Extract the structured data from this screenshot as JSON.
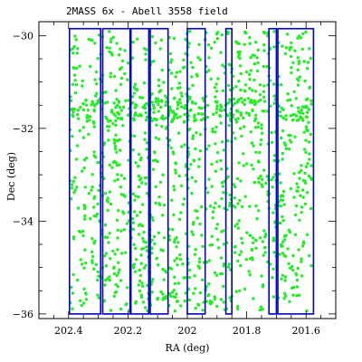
{
  "chart_data": {
    "type": "scatter",
    "title": "2MASS 6x - Abell 3558 field",
    "xlabel": "RA (deg)",
    "ylabel": "Dec (deg)",
    "xlim": [
      202.5,
      201.5
    ],
    "ylim": [
      -36.1,
      -29.7
    ],
    "x_ticks": [
      202.4,
      202.2,
      202.0,
      201.8,
      201.6
    ],
    "x_tick_labels": [
      "202.4",
      "202.2",
      "202",
      "201.8",
      "201.6"
    ],
    "y_ticks": [
      -30,
      -32,
      -34,
      -36
    ],
    "y_tick_labels": [
      "−30",
      "−32",
      "−34",
      "−36"
    ],
    "marker_color": "#22ee22",
    "strip_color": "#0000cc",
    "strips": [
      {
        "ra": [
          202.397,
          202.292
        ],
        "dec": [
          -36.0,
          -29.85
        ]
      },
      {
        "ra": [
          202.285,
          202.193
        ],
        "dec": [
          -36.0,
          -29.85
        ]
      },
      {
        "ra": [
          202.19,
          202.13
        ],
        "dec": [
          -36.0,
          -29.85
        ]
      },
      {
        "ra": [
          202.125,
          202.065
        ],
        "dec": [
          -36.0,
          -29.85
        ]
      },
      {
        "ra": [
          202.0,
          201.94
        ],
        "dec": [
          -36.0,
          -29.85
        ]
      },
      {
        "ra": [
          201.87,
          201.85
        ],
        "dec": [
          -36.0,
          -29.85
        ]
      },
      {
        "ra": [
          201.725,
          201.7
        ],
        "dec": [
          -36.0,
          -29.85
        ]
      },
      {
        "ra": [
          201.695,
          201.575
        ],
        "dec": [
          -36.0,
          -29.85
        ]
      }
    ],
    "point_count": 1400,
    "point_region": {
      "ra": [
        202.395,
        201.58
      ],
      "dec": [
        -35.95,
        -29.9
      ]
    }
  }
}
